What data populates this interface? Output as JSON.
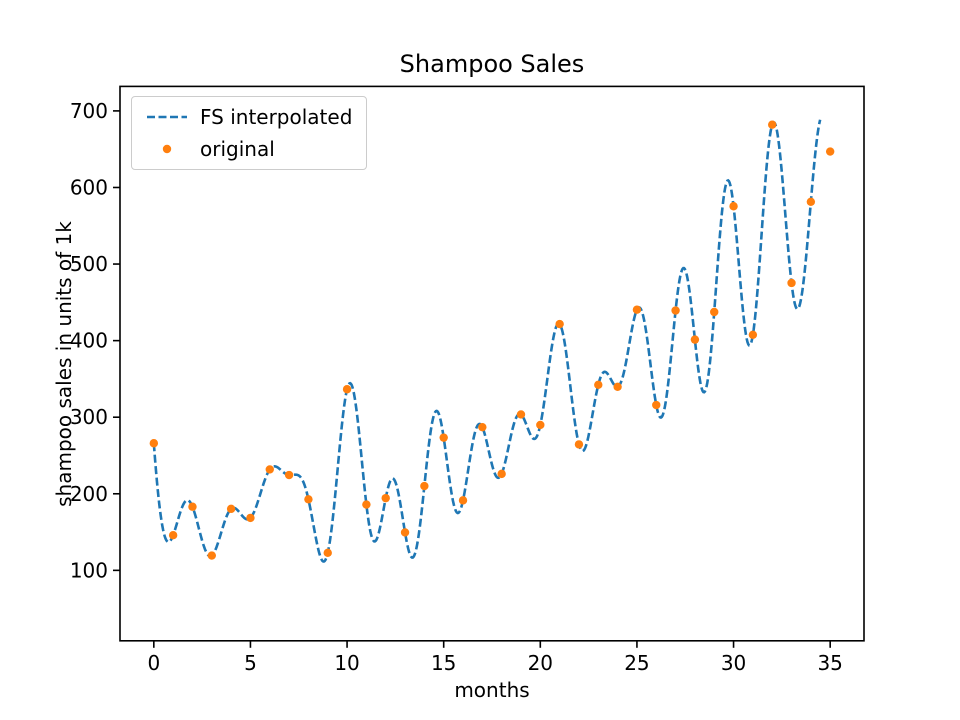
{
  "chart_data": {
    "type": "line",
    "title": "Shampoo Sales",
    "xlabel": "months",
    "ylabel": "shampoo sales in units of 1k",
    "xlim": [
      -1.75,
      36.75
    ],
    "ylim": [
      8,
      732
    ],
    "xticks": [
      0,
      5,
      10,
      15,
      20,
      25,
      30,
      35
    ],
    "yticks": [
      100,
      200,
      300,
      400,
      500,
      600,
      700
    ],
    "grid": false,
    "legend_position": "upper left",
    "series": [
      {
        "name": "FS interpolated",
        "type": "line",
        "linestyle": "dashed",
        "color": "#1f77b4",
        "method": "fourier_series_interpolation_of_original",
        "x_start": 0,
        "x_end": 34.5,
        "x_step": 0.04
      },
      {
        "name": "original",
        "type": "scatter",
        "color": "#ff7f0e",
        "x": [
          0,
          1,
          2,
          3,
          4,
          5,
          6,
          7,
          8,
          9,
          10,
          11,
          12,
          13,
          14,
          15,
          16,
          17,
          18,
          19,
          20,
          21,
          22,
          23,
          24,
          25,
          26,
          27,
          28,
          29,
          30,
          31,
          32,
          33,
          34,
          35
        ],
        "values": [
          266.0,
          145.9,
          183.1,
          119.3,
          180.3,
          168.5,
          231.8,
          224.5,
          192.8,
          122.9,
          336.5,
          185.9,
          194.3,
          149.5,
          210.1,
          273.3,
          191.4,
          287.0,
          226.0,
          303.6,
          289.9,
          421.6,
          264.5,
          342.3,
          339.7,
          440.4,
          315.9,
          439.3,
          401.3,
          437.4,
          575.5,
          407.6,
          682.0,
          475.3,
          581.3,
          646.9
        ]
      }
    ]
  }
}
